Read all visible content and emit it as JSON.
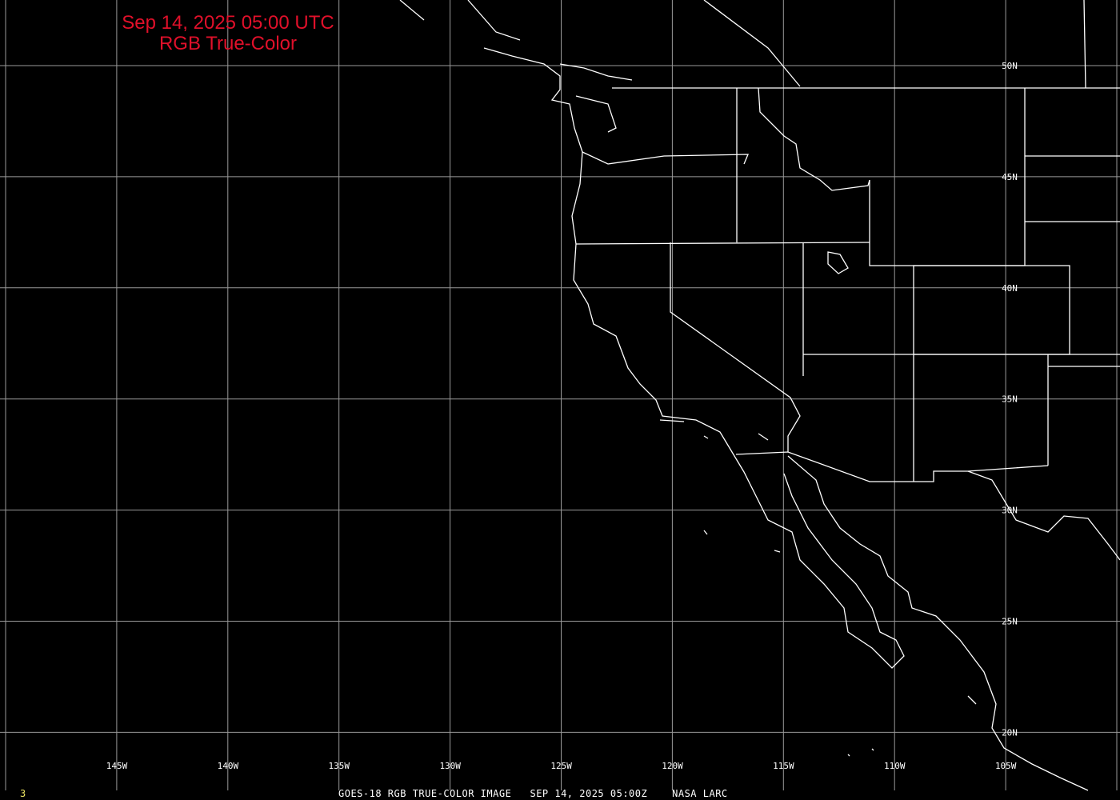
{
  "title": {
    "line1": "Sep 14, 2025 05:00 UTC",
    "line2": "RGB True-Color"
  },
  "caption": {
    "frame": "3",
    "text": "GOES-18 RGB TRUE-COLOR IMAGE   SEP 14, 2025 05:00Z    NASA LARC"
  },
  "longitude_labels": [
    "145W",
    "140W",
    "135W",
    "130W",
    "125W",
    "120W",
    "115W",
    "110W",
    "105W"
  ],
  "latitude_labels": [
    "50N",
    "45N",
    "40N",
    "35N",
    "30N",
    "25N",
    "20N"
  ],
  "colors": {
    "background": "#000000",
    "title": "#e0102a",
    "grid": "#9a9a9a",
    "coastline": "#ffffff",
    "frame_number": "#e8e060"
  }
}
